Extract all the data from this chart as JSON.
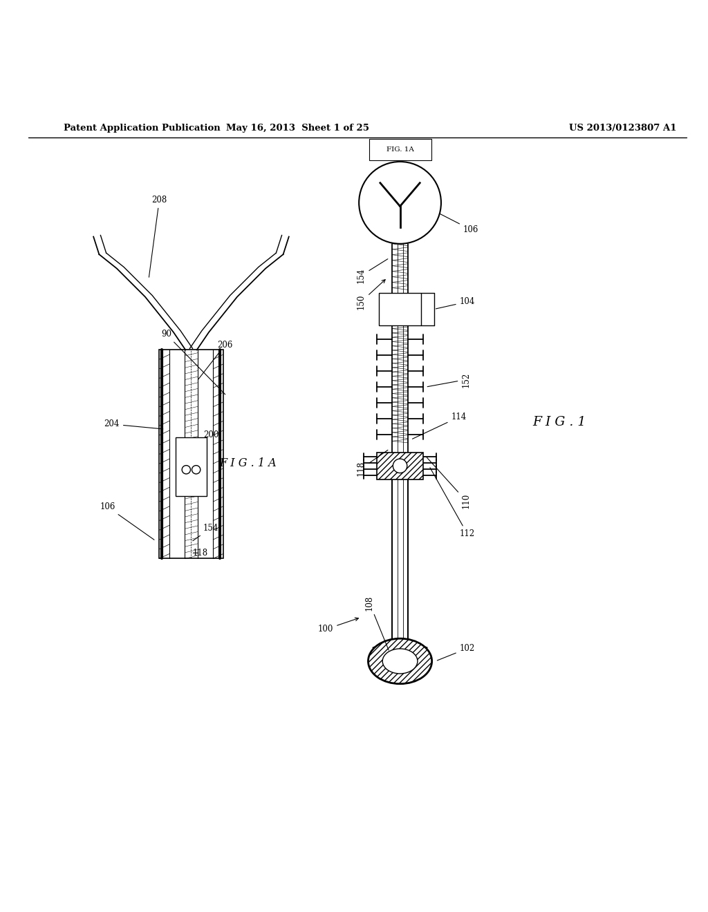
{
  "background_color": "#ffffff",
  "header_left": "Patent Application Publication",
  "header_mid": "May 16, 2013  Sheet 1 of 25",
  "header_right": "US 2013/0123807 A1",
  "fig_label_left": "F I G . 1 A",
  "fig_label_right": "F I G . 1"
}
